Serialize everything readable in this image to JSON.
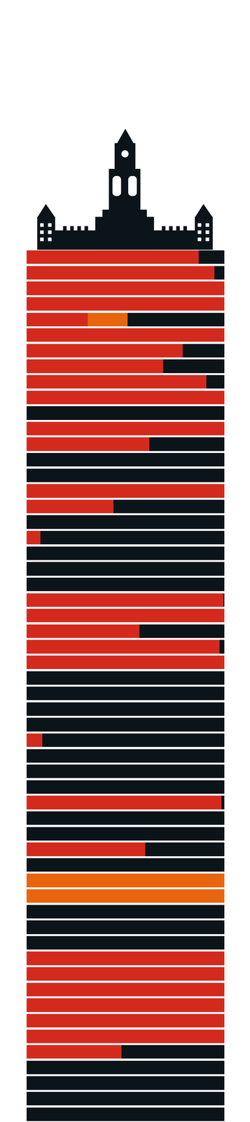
{
  "chart_data": {
    "type": "bar",
    "orientation": "horizontal",
    "stacked": true,
    "tick_labels": false,
    "categories": [
      null,
      null,
      null,
      null,
      null,
      null,
      null,
      null,
      null,
      null,
      null,
      null,
      null,
      null,
      null,
      null,
      null,
      null,
      null,
      null,
      null,
      null,
      null,
      null,
      null,
      null,
      null,
      null,
      null,
      null,
      null,
      null,
      null,
      null,
      null,
      null,
      null,
      null,
      null,
      null,
      null,
      null,
      null,
      null,
      null,
      null,
      null,
      null,
      null,
      null,
      null,
      null,
      null,
      null,
      null,
      null
    ],
    "xlim": [
      0,
      100
    ],
    "series": [
      {
        "color": "#d42a1e",
        "values": [
          87,
          95,
          100,
          100,
          31,
          100,
          79,
          69,
          91,
          100,
          0,
          100,
          62,
          0,
          0,
          100,
          44,
          0,
          7,
          0,
          0,
          0,
          99.5,
          100,
          57,
          97.5,
          100,
          0,
          0,
          0,
          0,
          8,
          0,
          0,
          0,
          98.5,
          0,
          0,
          60,
          0,
          0,
          0,
          0,
          0,
          0,
          100,
          100,
          100,
          100,
          100,
          100,
          48,
          0,
          0,
          0,
          0
        ]
      },
      {
        "color": "#e8650e",
        "values": [
          0,
          0,
          0,
          0,
          20,
          0,
          0,
          0,
          0,
          0,
          0,
          0,
          0,
          0,
          0,
          0,
          0,
          0,
          0,
          0,
          0,
          0,
          0,
          0,
          0,
          0,
          0,
          0,
          0,
          0,
          0,
          0,
          0,
          0,
          0,
          0,
          0,
          0,
          0,
          0,
          100,
          100,
          0,
          0,
          0,
          0,
          0,
          0,
          0,
          0,
          0,
          0,
          0,
          0,
          0,
          0
        ]
      },
      {
        "color": "#0b1419",
        "values": [
          13,
          5,
          0,
          0,
          49,
          0,
          21,
          31,
          9,
          0,
          100,
          0,
          38,
          100,
          100,
          0,
          56,
          100,
          93,
          100,
          100,
          100,
          0.5,
          0,
          43,
          2.5,
          0,
          100,
          100,
          100,
          100,
          92,
          100,
          100,
          100,
          1.5,
          100,
          100,
          40,
          100,
          0,
          0,
          100,
          100,
          100,
          0,
          0,
          0,
          0,
          0,
          0,
          52,
          100,
          100,
          100,
          100
        ]
      }
    ]
  }
}
